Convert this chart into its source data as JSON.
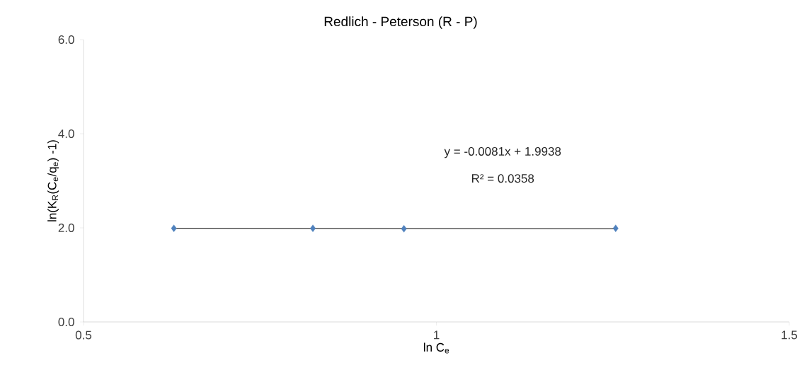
{
  "chart_data": {
    "type": "scatter",
    "title": "Redlich - Peterson (R - P)",
    "xlabel": "ln C$_{e}$",
    "ylabel": "ln(K$_{R}$(C$_{e}$/q$_{e}$) -1)",
    "series": [
      {
        "type": "line",
        "color": "#000000",
        "x": [
          0.628,
          1.254
        ],
        "values": [
          1.99,
          1.98
        ]
      },
      {
        "color": "#4f81bd",
        "marker": "diamond",
        "x": [
          0.628,
          0.825,
          0.954,
          1.254
        ],
        "values": [
          1.99,
          1.99,
          1.98,
          1.99
        ]
      }
    ],
    "xlim": [
      0.5,
      1.5
    ],
    "xticks": [
      0.5,
      1,
      1.5
    ],
    "ylim": [
      0,
      6
    ],
    "yticks": [
      {
        "value": 0,
        "label": "0.0"
      },
      {
        "value": 2,
        "label": "2.0"
      },
      {
        "value": 4,
        "label": "4.0"
      },
      {
        "value": 6,
        "label": "6.0"
      }
    ],
    "annotations": [
      "y = -0.0081x + 1.9938",
      "R² = 0.0358"
    ],
    "grid": false
  }
}
